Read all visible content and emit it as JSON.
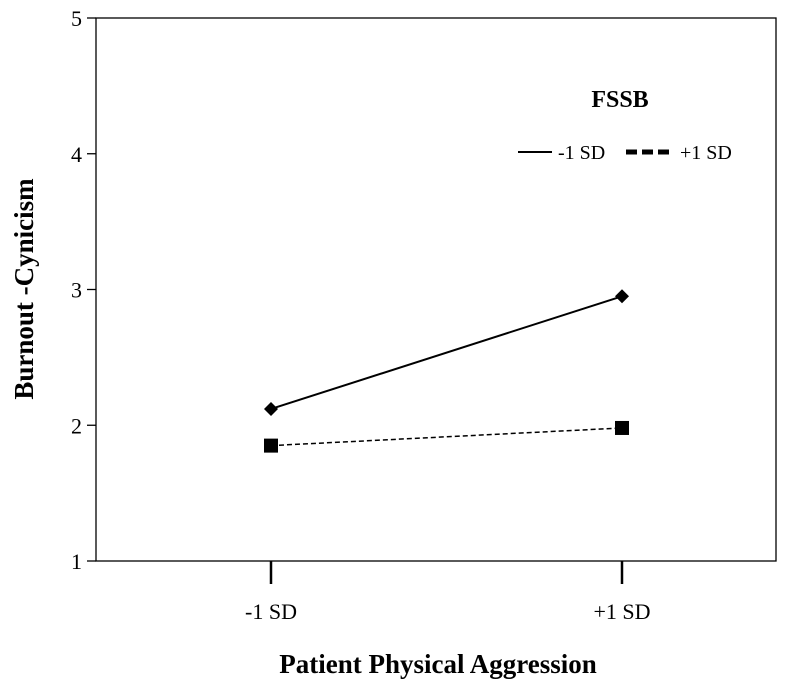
{
  "chart_data": {
    "type": "line",
    "title": "",
    "xlabel": "Patient Physical Aggression",
    "ylabel": "Burnout -Cynicism",
    "categories": [
      "-1 SD",
      "+1 SD"
    ],
    "ylim": [
      1,
      5
    ],
    "yticks": [
      "1",
      "2",
      "3",
      "4",
      "5"
    ],
    "grid": false,
    "legend": {
      "title": "FSSB",
      "placement": "top-right",
      "entries": [
        "-1 SD",
        "+1 SD"
      ]
    },
    "series": [
      {
        "name": "-1 SD",
        "values": [
          2.12,
          2.95
        ],
        "line_style": "solid",
        "marker": "diamond",
        "color": "#000000"
      },
      {
        "name": "+1 SD",
        "values": [
          1.85,
          1.98
        ],
        "line_style": "dashed",
        "marker": "square",
        "color": "#000000"
      }
    ]
  }
}
